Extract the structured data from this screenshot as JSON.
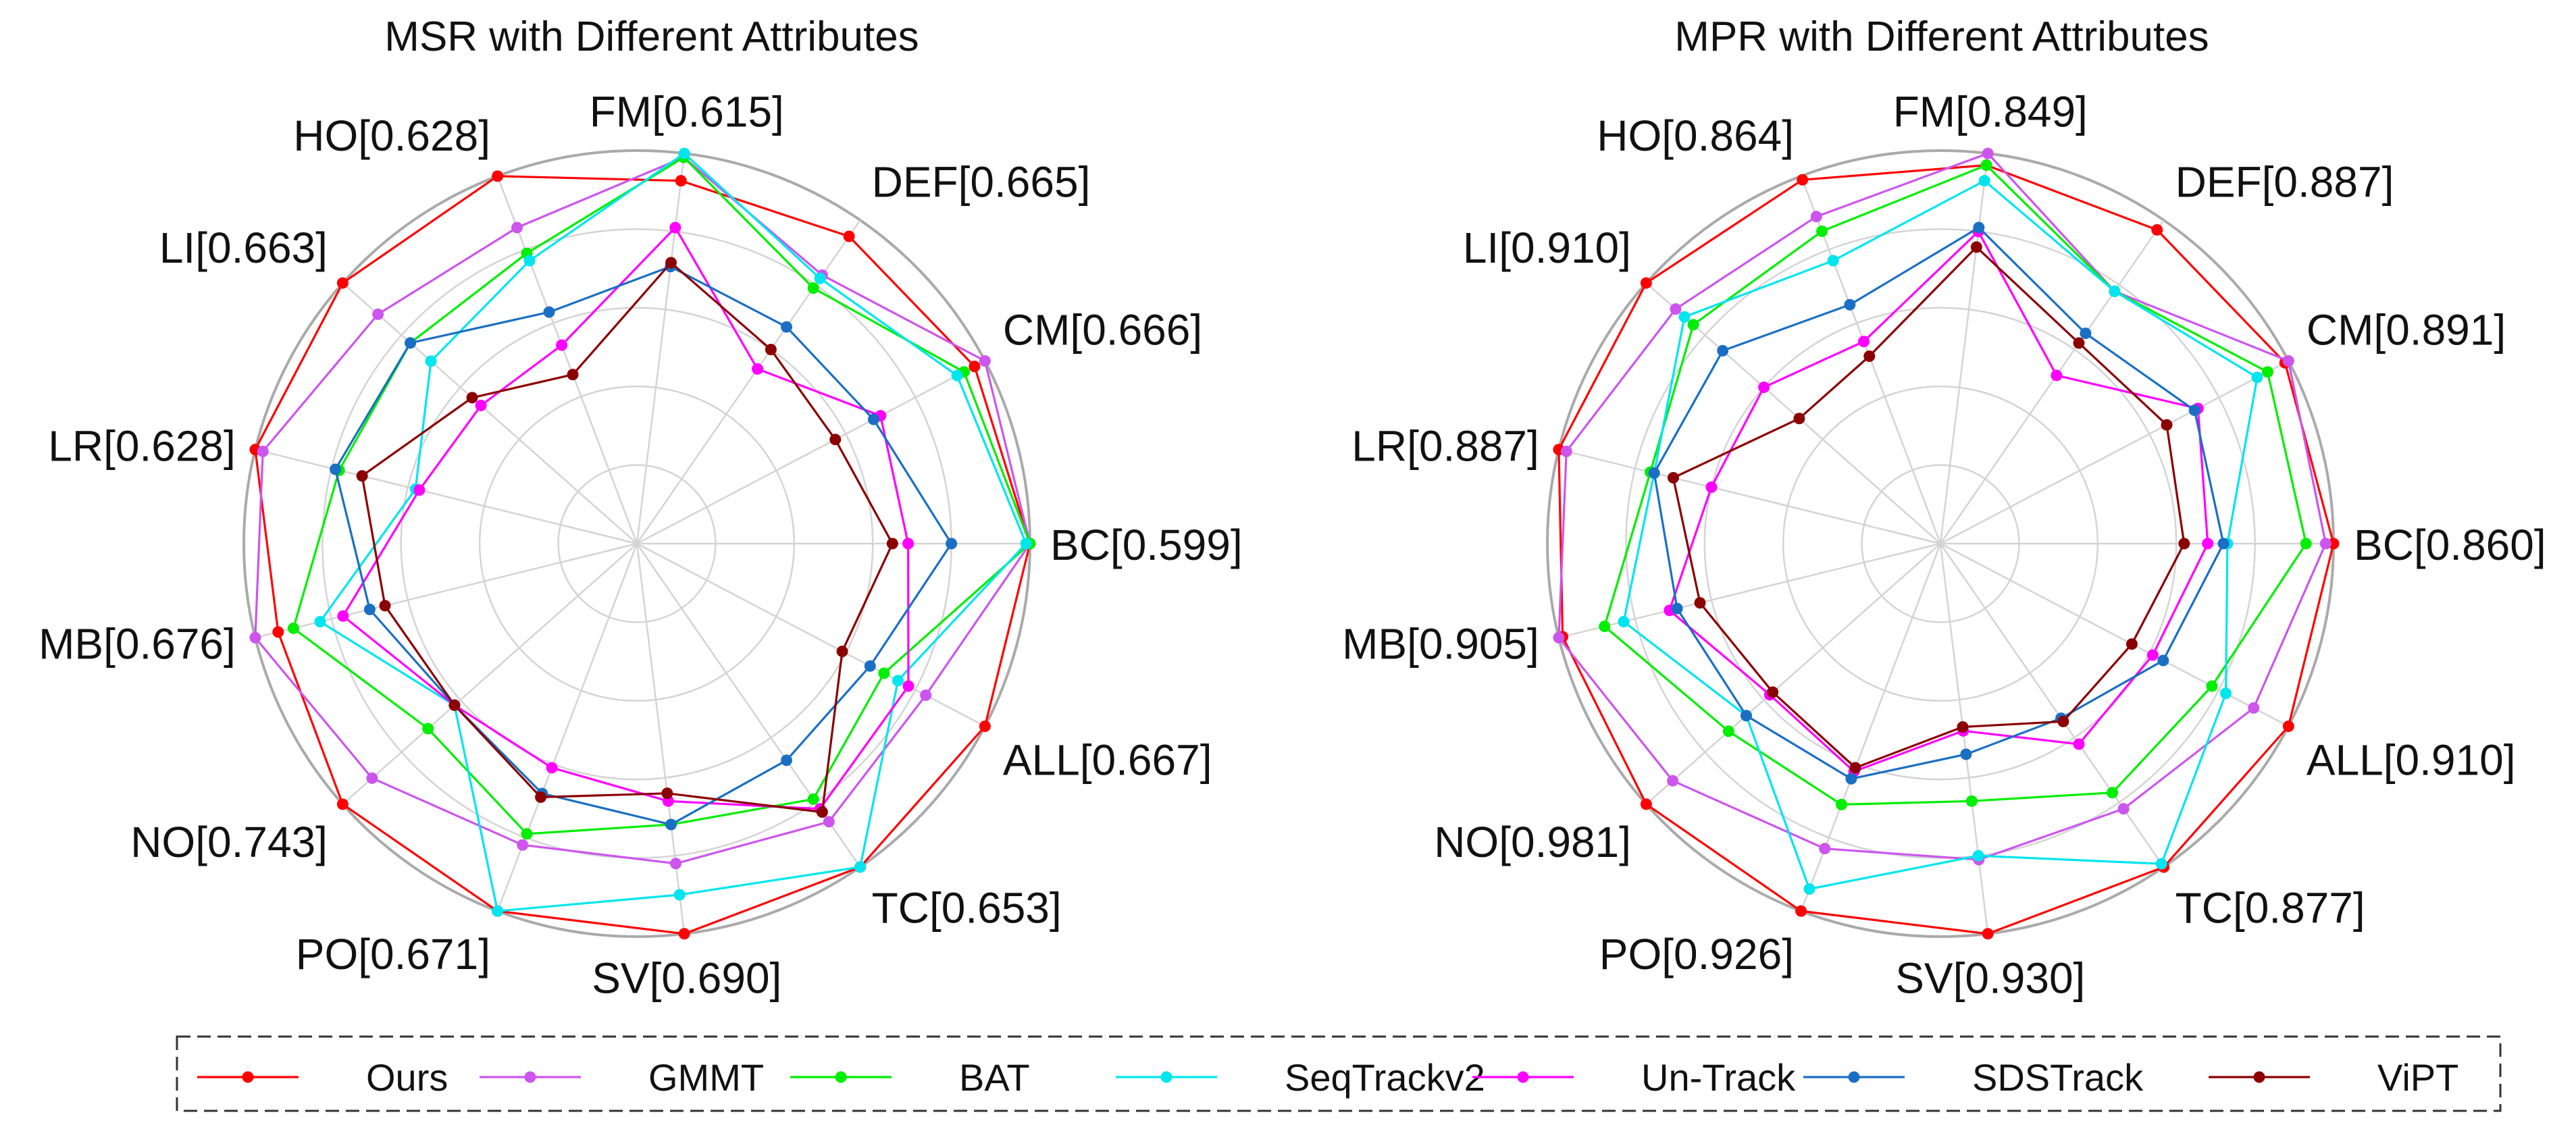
{
  "legend": {
    "items": [
      {
        "name": "Ours",
        "color": "#ff0000"
      },
      {
        "name": "GMMT",
        "color": "#cc55ee"
      },
      {
        "name": "BAT",
        "color": "#00ee00"
      },
      {
        "name": "SeqTrackv2",
        "color": "#00e5ee"
      },
      {
        "name": "Un-Track",
        "color": "#ff00ff"
      },
      {
        "name": "SDSTrack",
        "color": "#1a6fc4"
      },
      {
        "name": "ViPT",
        "color": "#8b0000"
      }
    ]
  },
  "chart_data": [
    {
      "type": "radar",
      "title": "MSR with Different Attributes",
      "axes": [
        "BC[0.599]",
        "CM[0.666]",
        "DEF[0.665]",
        "FM[0.615]",
        "HO[0.628]",
        "LI[0.663]",
        "LR[0.628]",
        "MB[0.676]",
        "NO[0.743]",
        "PO[0.671]",
        "SV[0.690]",
        "TC[0.653]",
        "ALL[0.667]"
      ],
      "rlim": [
        0,
        1
      ],
      "grid_rings": [
        0.2,
        0.4,
        0.6,
        0.8,
        1.0
      ],
      "series": [
        {
          "name": "Ours",
          "values": [
            1.0,
            0.97,
            0.95,
            0.93,
            1.0,
            1.0,
            1.0,
            0.94,
            1.0,
            1.0,
            1.0,
            1.0,
            1.0
          ]
        },
        {
          "name": "GMMT",
          "values": [
            1.0,
            1.0,
            0.83,
            0.99,
            0.86,
            0.88,
            0.98,
            1.0,
            0.9,
            0.82,
            0.82,
            0.86,
            0.83
          ]
        },
        {
          "name": "BAT",
          "values": [
            1.0,
            0.94,
            0.79,
            0.99,
            0.79,
            0.77,
            0.78,
            0.9,
            0.71,
            0.79,
            0.72,
            0.79,
            0.71
          ]
        },
        {
          "name": "SeqTrackv2",
          "values": [
            0.99,
            0.92,
            0.82,
            1.0,
            0.77,
            0.7,
            0.58,
            0.83,
            0.62,
            1.0,
            0.9,
            1.0,
            0.75
          ]
        },
        {
          "name": "Un-Track",
          "values": [
            0.69,
            0.7,
            0.54,
            0.81,
            0.54,
            0.53,
            0.57,
            0.77,
            0.62,
            0.61,
            0.66,
            0.82,
            0.78
          ]
        },
        {
          "name": "SDSTrack",
          "values": [
            0.8,
            0.68,
            0.67,
            0.71,
            0.63,
            0.77,
            0.79,
            0.7,
            0.62,
            0.68,
            0.72,
            0.67,
            0.67
          ]
        },
        {
          "name": "ViPT",
          "values": [
            0.65,
            0.57,
            0.6,
            0.72,
            0.46,
            0.56,
            0.72,
            0.66,
            0.62,
            0.69,
            0.64,
            0.83,
            0.59
          ]
        }
      ]
    },
    {
      "type": "radar",
      "title": "MPR with Different Attributes",
      "axes": [
        "BC[0.860]",
        "CM[0.891]",
        "DEF[0.887]",
        "FM[0.849]",
        "HO[0.864]",
        "LI[0.910]",
        "LR[0.887]",
        "MB[0.905]",
        "NO[0.981]",
        "PO[0.926]",
        "SV[0.930]",
        "TC[0.877]",
        "ALL[0.910]"
      ],
      "rlim": [
        0,
        1
      ],
      "grid_rings": [
        0.2,
        0.4,
        0.6,
        0.8,
        1.0
      ],
      "series": [
        {
          "name": "Ours",
          "values": [
            1.0,
            0.99,
            0.97,
            0.97,
            0.99,
            1.0,
            1.0,
            0.99,
            1.0,
            1.0,
            1.0,
            1.0,
            1.0
          ]
        },
        {
          "name": "GMMT",
          "values": [
            0.98,
            1.0,
            0.78,
            1.0,
            0.89,
            0.9,
            0.98,
            1.0,
            0.91,
            0.83,
            0.81,
            0.82,
            0.9
          ]
        },
        {
          "name": "BAT",
          "values": [
            0.93,
            0.94,
            0.78,
            0.97,
            0.85,
            0.84,
            0.76,
            0.88,
            0.72,
            0.71,
            0.66,
            0.77,
            0.78
          ]
        },
        {
          "name": "SeqTrackv2",
          "values": [
            0.73,
            0.91,
            0.78,
            0.93,
            0.77,
            0.87,
            0.75,
            0.83,
            0.66,
            0.94,
            0.8,
            0.99,
            0.82
          ]
        },
        {
          "name": "Un-Track",
          "values": [
            0.68,
            0.74,
            0.52,
            0.8,
            0.55,
            0.6,
            0.6,
            0.71,
            0.58,
            0.62,
            0.48,
            0.62,
            0.61
          ]
        },
        {
          "name": "SDSTrack",
          "values": [
            0.72,
            0.73,
            0.65,
            0.81,
            0.65,
            0.74,
            0.75,
            0.69,
            0.66,
            0.64,
            0.54,
            0.54,
            0.64
          ]
        },
        {
          "name": "ViPT",
          "values": [
            0.62,
            0.65,
            0.62,
            0.76,
            0.51,
            0.48,
            0.7,
            0.63,
            0.57,
            0.61,
            0.47,
            0.55,
            0.55
          ]
        }
      ]
    }
  ]
}
